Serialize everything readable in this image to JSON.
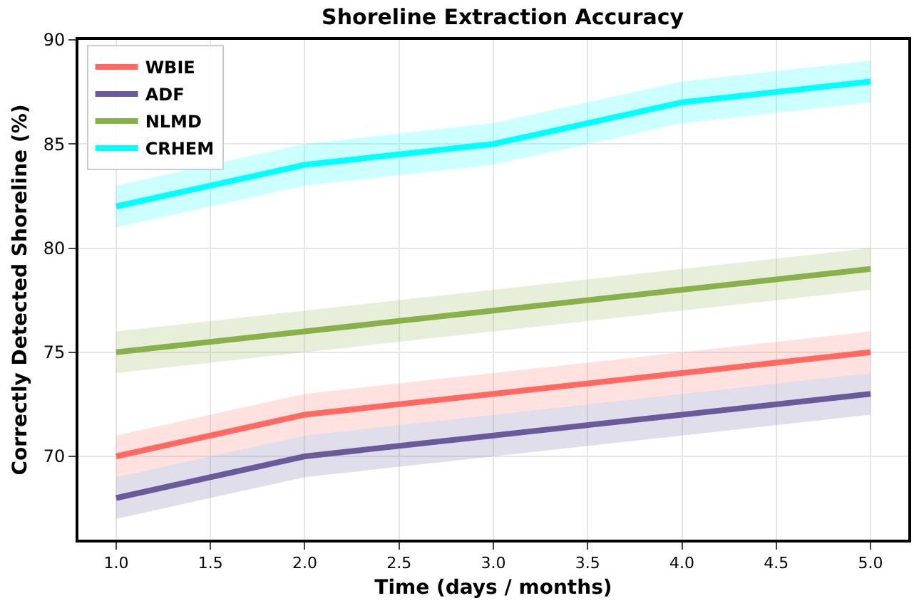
{
  "chart_data": {
    "type": "line",
    "title": "Shoreline Extraction Accuracy",
    "xlabel": "Time (days / months)",
    "ylabel": "Correctly Detected Shoreline (%)",
    "x": [
      1,
      2,
      3,
      4,
      5
    ],
    "series": [
      {
        "name": "WBIE",
        "color": "#ff6961",
        "values": [
          70,
          72,
          73,
          74,
          75
        ],
        "lower": [
          69,
          71,
          72,
          73,
          74
        ],
        "upper": [
          71,
          73,
          74,
          75,
          76
        ]
      },
      {
        "name": "ADF",
        "color": "#6a5a9a",
        "values": [
          68,
          70,
          71,
          72,
          73
        ],
        "lower": [
          67,
          69,
          70,
          71,
          72
        ],
        "upper": [
          69,
          71,
          72,
          73,
          74
        ]
      },
      {
        "name": "NLMD",
        "color": "#88b04b",
        "values": [
          75,
          76,
          77,
          78,
          79
        ],
        "lower": [
          74,
          75,
          76,
          77,
          78
        ],
        "upper": [
          76,
          77,
          78,
          79,
          80
        ]
      },
      {
        "name": "CRHEM",
        "color": "#00ffff",
        "values": [
          82,
          84,
          85,
          87,
          88
        ],
        "lower": [
          81,
          83,
          84,
          86,
          87
        ],
        "upper": [
          83,
          85,
          86,
          88,
          89
        ]
      }
    ],
    "xlim": [
      0.8,
      5.2
    ],
    "xticks": [
      {
        "value": 1,
        "label": "1.0"
      },
      1.5,
      {
        "value": 2,
        "label": "2.0"
      },
      2.5,
      {
        "value": 3,
        "label": "3.0"
      },
      3.5,
      {
        "value": 4,
        "label": "4.0"
      },
      4.5,
      {
        "value": 5,
        "label": "5.0"
      }
    ],
    "ylim": [
      66,
      90
    ],
    "yticks": [
      70,
      75,
      80,
      85,
      90
    ],
    "grid": true,
    "legend": "top left",
    "marker": "none",
    "line_style": "solid"
  }
}
